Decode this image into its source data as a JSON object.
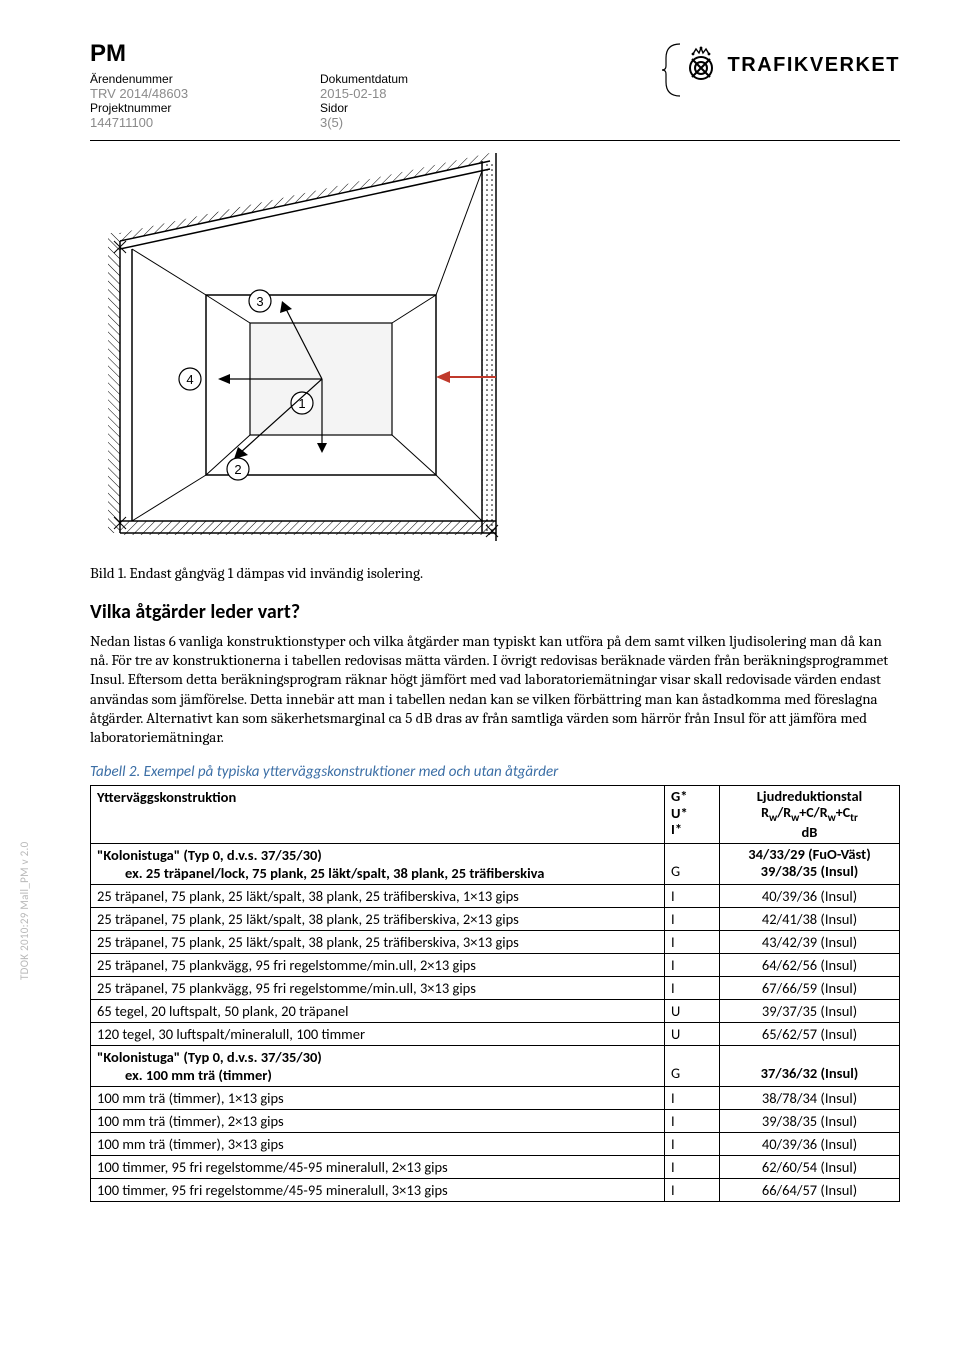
{
  "side_text": "TDOK 2010:29 Mall_PM v 2.0",
  "header": {
    "pm": "PM",
    "labels": {
      "arendenummer": "Ärendenummer",
      "dokumentdatum": "Dokumentdatum",
      "projektnummer": "Projektnummer",
      "sidor": "Sidor"
    },
    "values": {
      "arendenummer": "TRV 2014/48603",
      "dokumentdatum": "2015-02-18",
      "projektnummer": "144711100",
      "sidor": "3(5)"
    },
    "logo_text": "TRAFIKVERKET"
  },
  "figure_caption": "Bild 1. Endast gångväg 1 dämpas vid invändig isolering.",
  "section_heading": "Vilka åtgärder leder vart?",
  "body_paragraph": "Nedan listas 6 vanliga konstruktionstyper och vilka åtgärder man typiskt kan utföra på dem samt vilken ljudisolering man då kan nå. För tre av konstruktionerna i tabellen redovisas mätta värden. I övrigt redovisas beräknade värden från beräkningsprogrammet Insul. Eftersom detta beräkningsprogram räknar högt jämfört med vad laboratoriemätningar visar skall redovisade värden endast användas som jämförelse. Detta innebär att man i tabellen nedan kan se vilken förbättring man kan åstadkomma med föreslagna åtgärder. Alternativt kan som säkerhetsmarginal ca 5 dB dras av från samtliga värden som härrör från Insul för att jämföra med laboratoriemätningar.",
  "table_caption": "Tabell 2. Exempel på typiska ytterväggskonstruktioner med och utan åtgärder",
  "table": {
    "header": {
      "col1": "Ytterväggskonstruktion",
      "col2_lines": [
        "G*",
        "U*",
        "I*"
      ],
      "col3_line1": "Ljudreduktionstal",
      "col3_line2_prefix": "R",
      "col3_line2_sub1": "w",
      "col3_line2_mid1": "/R",
      "col3_line2_sub2": "w",
      "col3_line2_mid2": "+C/R",
      "col3_line2_sub3": "w",
      "col3_line2_mid3": "+C",
      "col3_line2_sub4": "tr",
      "col3_line3": "dB"
    },
    "rows": [
      {
        "bold": true,
        "c1a": "\"Kolonistuga\" (Typ 0, d.v.s. 37/35/30)",
        "c1b": "ex. 25 träpanel/lock, 75 plank, 25 läkt/spalt, 38 plank, 25 träfiberskiva",
        "c2": "G",
        "c3a": "34/33/29 (FuO-Väst)",
        "c3b": "39/38/35 (Insul)"
      },
      {
        "c1": "25 träpanel, 75 plank, 25 läkt/spalt, 38 plank, 25 träfiberskiva, 1×13 gips",
        "c2": "I",
        "c3": "40/39/36 (Insul)"
      },
      {
        "c1": "25 träpanel, 75 plank, 25 läkt/spalt, 38 plank, 25 träfiberskiva, 2×13 gips",
        "c2": "I",
        "c3": "42/41/38 (Insul)"
      },
      {
        "c1": "25 träpanel, 75 plank, 25 läkt/spalt, 38 plank, 25 träfiberskiva, 3×13 gips",
        "c2": "I",
        "c3": "43/42/39 (Insul)"
      },
      {
        "c1": "25 träpanel, 75 plankvägg, 95 fri regelstomme/min.ull, 2×13 gips",
        "c2": "I",
        "c3": "64/62/56 (Insul)"
      },
      {
        "c1": "25 träpanel, 75 plankvägg, 95 fri regelstomme/min.ull, 3×13 gips",
        "c2": "I",
        "c3": "67/66/59 (Insul)"
      },
      {
        "c1": "65 tegel, 20 luftspalt, 50 plank, 20 träpanel",
        "c2": "U",
        "c3": "39/37/35 (Insul)"
      },
      {
        "c1": "120 tegel, 30 luftspalt/mineralull, 100 timmer",
        "c2": "U",
        "c3": "65/62/57 (Insul)"
      },
      {
        "bold": true,
        "c1a": "\"Kolonistuga\" (Typ 0, d.v.s. 37/35/30)",
        "c1b": "ex. 100 mm trä (timmer)",
        "c2": "G",
        "c3b": "37/36/32 (Insul)"
      },
      {
        "c1": "100 mm trä (timmer), 1×13 gips",
        "c2": "I",
        "c3": "38/78/34 (Insul)"
      },
      {
        "c1": "100 mm trä (timmer), 2×13 gips",
        "c2": "I",
        "c3": "39/38/35 (Insul)"
      },
      {
        "c1": "100 mm trä (timmer), 3×13 gips",
        "c2": "I",
        "c3": "40/39/36 (Insul)"
      },
      {
        "c1": "100 timmer, 95 fri regelstomme/45-95 mineralull, 2×13 gips",
        "c2": "I",
        "c3": "62/60/54 (Insul)"
      },
      {
        "c1": "100 timmer, 95 fri regelstomme/45-95 mineralull, 3×13 gips",
        "c2": "I",
        "c3": "66/64/57 (Insul)"
      }
    ]
  },
  "diagram": {
    "background": "#ffffff",
    "line_color": "#000000",
    "hatch_color": "#000000",
    "circle_labels": [
      "1",
      "2",
      "3",
      "4"
    ]
  }
}
